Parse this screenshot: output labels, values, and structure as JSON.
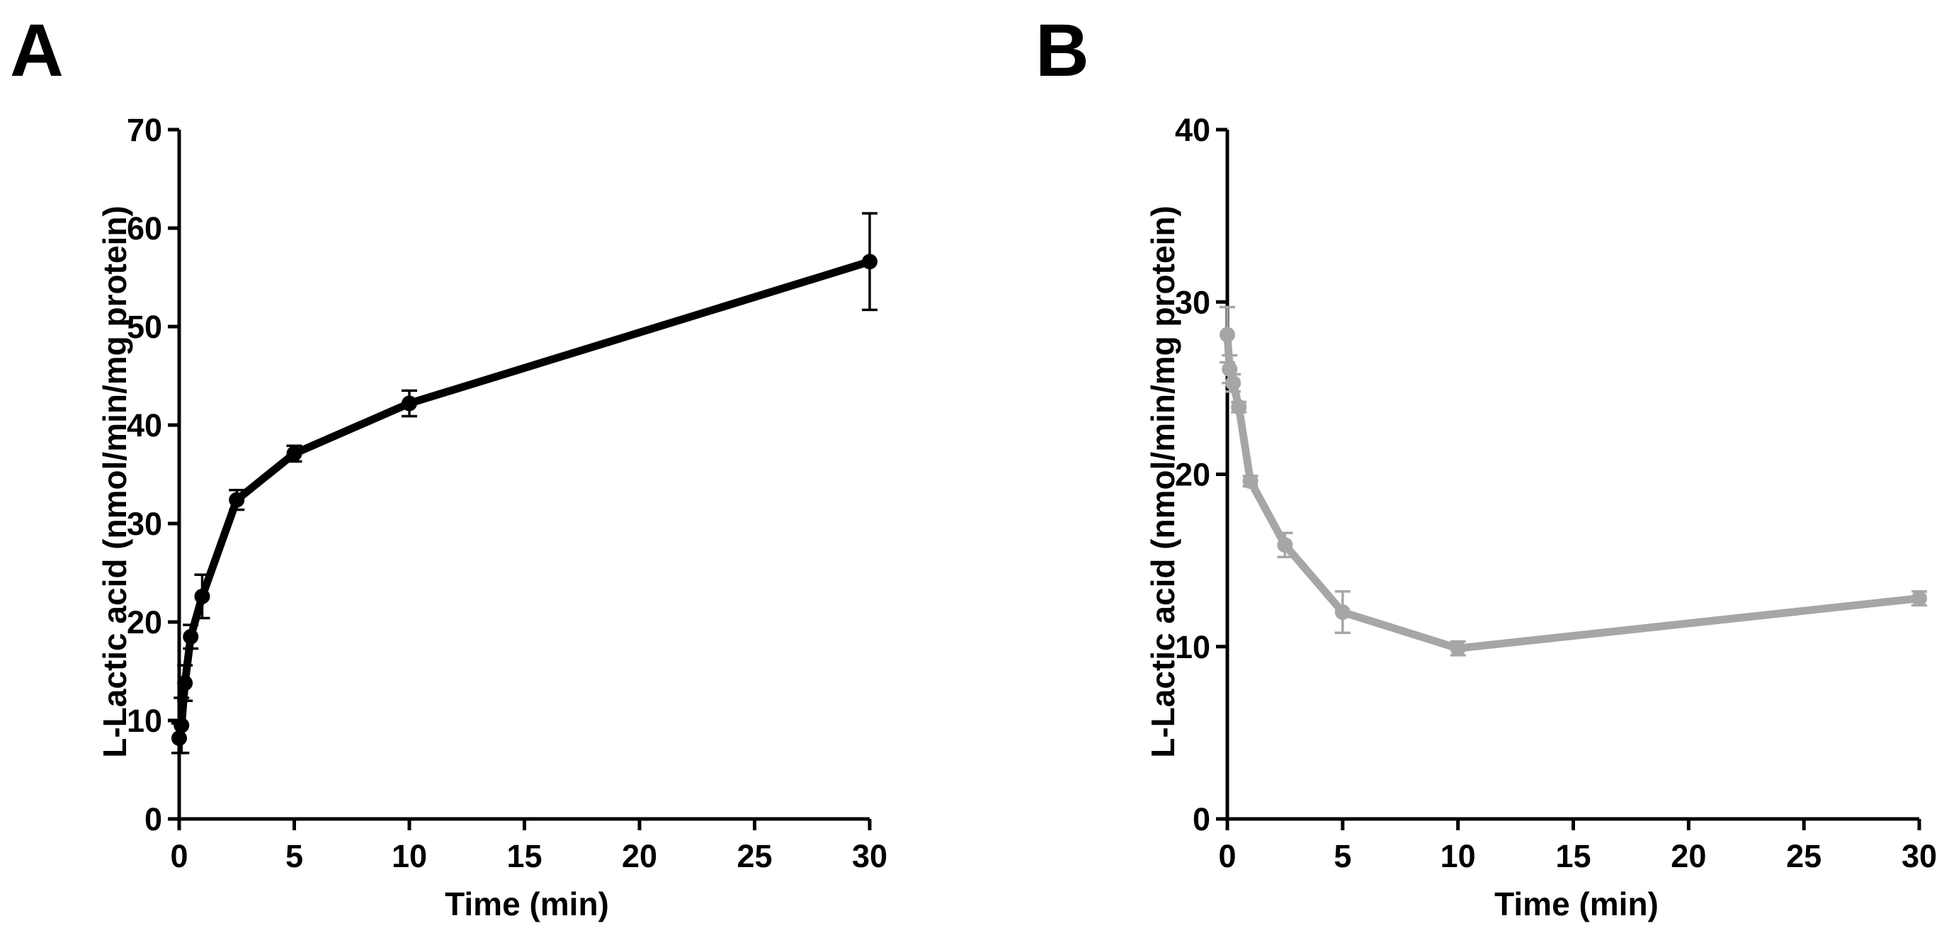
{
  "chart_data": [
    {
      "panel": "A",
      "type": "line",
      "title": "",
      "xlabel": "Time (min)",
      "ylabel": "L-Lactic acid (nmol/min/mg protein)",
      "xlim": [
        0,
        30
      ],
      "ylim": [
        0,
        70
      ],
      "xticks": [
        0,
        5,
        10,
        15,
        20,
        25,
        30
      ],
      "yticks": [
        0,
        10,
        20,
        30,
        40,
        50,
        60,
        70
      ],
      "grid": false,
      "color": "#000000",
      "series": [
        {
          "name": "L-Lactic acid",
          "x": [
            0,
            0.1,
            0.25,
            0.5,
            1,
            2.5,
            5,
            10,
            30
          ],
          "y": [
            8.2,
            9.5,
            13.8,
            18.5,
            22.6,
            32.4,
            37.1,
            42.2,
            56.6
          ],
          "error": [
            1.5,
            2.8,
            1.8,
            1.2,
            2.2,
            1.0,
            0.8,
            1.3,
            4.9
          ]
        }
      ]
    },
    {
      "panel": "B",
      "type": "line",
      "title": "",
      "xlabel": "Time (min)",
      "ylabel": "L-Lactic acid (nmol/min/mg protein)",
      "xlim": [
        0,
        30
      ],
      "ylim": [
        0,
        40
      ],
      "xticks": [
        0,
        5,
        10,
        15,
        20,
        25,
        30
      ],
      "yticks": [
        0,
        10,
        20,
        30,
        40
      ],
      "grid": false,
      "color": "#a6a6a6",
      "series": [
        {
          "name": "L-Lactic acid",
          "x": [
            0,
            0.1,
            0.25,
            0.5,
            1,
            2.5,
            5,
            10,
            30
          ],
          "y": [
            28.1,
            26.1,
            25.3,
            23.9,
            19.6,
            15.9,
            12.0,
            9.9,
            12.8
          ],
          "error": [
            1.6,
            0.8,
            0.5,
            0.3,
            0.3,
            0.7,
            1.2,
            0.4,
            0.4
          ]
        }
      ]
    }
  ]
}
